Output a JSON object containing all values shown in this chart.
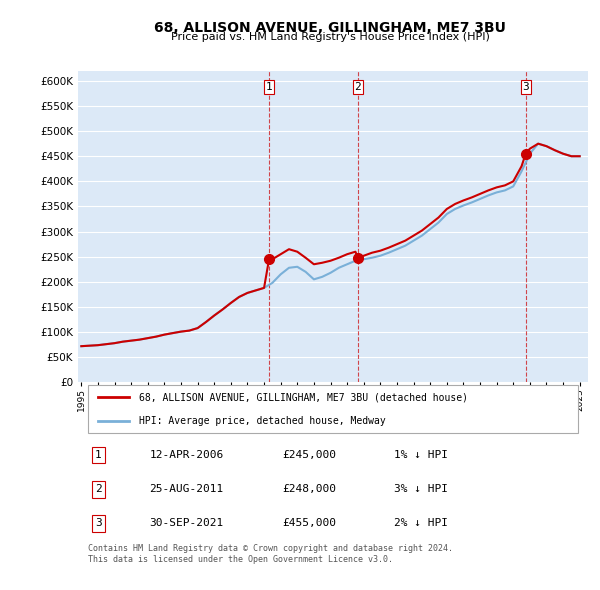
{
  "title": "68, ALLISON AVENUE, GILLINGHAM, ME7 3BU",
  "subtitle": "Price paid vs. HM Land Registry's House Price Index (HPI)",
  "ylabel_ticks": [
    "£0",
    "£50K",
    "£100K",
    "£150K",
    "£200K",
    "£250K",
    "£300K",
    "£350K",
    "£400K",
    "£450K",
    "£500K",
    "£550K",
    "£600K"
  ],
  "y_values": [
    0,
    50000,
    100000,
    150000,
    200000,
    250000,
    300000,
    350000,
    400000,
    450000,
    500000,
    550000,
    600000
  ],
  "background_color": "#dce9f7",
  "plot_bg_color": "#dce9f7",
  "red_line_color": "#cc0000",
  "blue_line_color": "#7ab0d8",
  "sale_marker_color": "#cc0000",
  "sale_dates": [
    2006.28,
    2011.65,
    2021.75
  ],
  "sale_prices": [
    245000,
    248000,
    455000
  ],
  "sale_labels": [
    "1",
    "2",
    "3"
  ],
  "legend_line1": "68, ALLISON AVENUE, GILLINGHAM, ME7 3BU (detached house)",
  "legend_line2": "HPI: Average price, detached house, Medway",
  "table_rows": [
    [
      "1",
      "12-APR-2006",
      "£245,000",
      "1% ↓ HPI"
    ],
    [
      "2",
      "25-AUG-2011",
      "£248,000",
      "3% ↓ HPI"
    ],
    [
      "3",
      "30-SEP-2021",
      "£455,000",
      "2% ↓ HPI"
    ]
  ],
  "footer": "Contains HM Land Registry data © Crown copyright and database right 2024.\nThis data is licensed under the Open Government Licence v3.0.",
  "hpi_x": [
    1995,
    1995.5,
    1996,
    1996.5,
    1997,
    1997.5,
    1998,
    1998.5,
    1999,
    1999.5,
    2000,
    2000.5,
    2001,
    2001.5,
    2002,
    2002.5,
    2003,
    2003.5,
    2004,
    2004.5,
    2005,
    2005.5,
    2006,
    2006.5,
    2007,
    2007.5,
    2008,
    2008.5,
    2009,
    2009.5,
    2010,
    2010.5,
    2011,
    2011.5,
    2012,
    2012.5,
    2013,
    2013.5,
    2014,
    2014.5,
    2015,
    2015.5,
    2016,
    2016.5,
    2017,
    2017.5,
    2018,
    2018.5,
    2019,
    2019.5,
    2020,
    2020.5,
    2021,
    2021.5,
    2022,
    2022.5,
    2023,
    2023.5,
    2024,
    2024.5,
    2025
  ],
  "hpi_y": [
    72000,
    73000,
    74000,
    76000,
    78000,
    81000,
    83000,
    85000,
    88000,
    91000,
    95000,
    98000,
    101000,
    103000,
    108000,
    120000,
    133000,
    145000,
    158000,
    170000,
    178000,
    183000,
    188000,
    198000,
    215000,
    228000,
    230000,
    220000,
    205000,
    210000,
    218000,
    228000,
    235000,
    242000,
    245000,
    248000,
    252000,
    258000,
    265000,
    272000,
    282000,
    292000,
    305000,
    318000,
    335000,
    345000,
    352000,
    358000,
    365000,
    372000,
    378000,
    382000,
    390000,
    420000,
    455000,
    475000,
    470000,
    462000,
    455000,
    450000,
    450000
  ],
  "price_line_x": [
    1995,
    1995.5,
    1996,
    1996.5,
    1997,
    1997.5,
    1998,
    1998.5,
    1999,
    1999.5,
    2000,
    2000.5,
    2001,
    2001.5,
    2002,
    2002.5,
    2003,
    2003.5,
    2004,
    2004.5,
    2005,
    2005.5,
    2006,
    2006.3,
    2006.5,
    2007,
    2007.5,
    2008,
    2008.5,
    2009,
    2009.5,
    2010,
    2010.5,
    2011,
    2011.5,
    2011.65,
    2012,
    2012.5,
    2013,
    2013.5,
    2014,
    2014.5,
    2015,
    2015.5,
    2016,
    2016.5,
    2017,
    2017.5,
    2018,
    2018.5,
    2019,
    2019.5,
    2020,
    2020.5,
    2021,
    2021.5,
    2021.75,
    2022,
    2022.5,
    2023,
    2023.5,
    2024,
    2024.5,
    2025
  ],
  "price_line_y": [
    72000,
    73000,
    74000,
    76000,
    78000,
    81000,
    83000,
    85000,
    88000,
    91000,
    95000,
    98000,
    101000,
    103000,
    108000,
    120000,
    133000,
    145000,
    158000,
    170000,
    178000,
    183000,
    188000,
    245000,
    245000,
    255000,
    265000,
    260000,
    248000,
    235000,
    238000,
    242000,
    248000,
    255000,
    260000,
    248000,
    252000,
    258000,
    262000,
    268000,
    275000,
    282000,
    292000,
    302000,
    315000,
    328000,
    345000,
    355000,
    362000,
    368000,
    375000,
    382000,
    388000,
    392000,
    400000,
    430000,
    455000,
    465000,
    475000,
    470000,
    462000,
    455000,
    450000,
    450000
  ]
}
